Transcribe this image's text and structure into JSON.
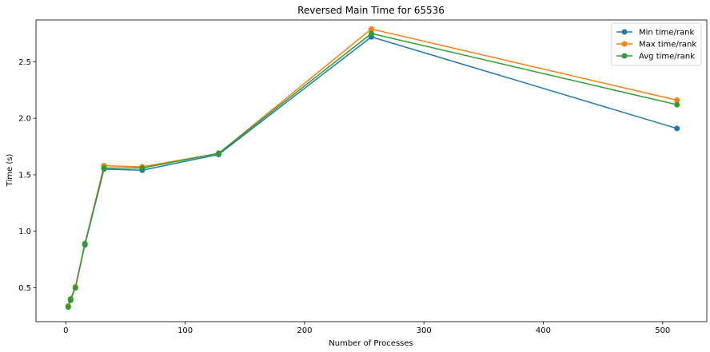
{
  "chart_data": {
    "type": "line",
    "title": "Reversed Main Time for 65536",
    "xlabel": "Number of Processes",
    "ylabel": "Time (s)",
    "xlim": [
      -25,
      537
    ],
    "ylim": [
      0.2,
      2.87
    ],
    "xticks": [
      0,
      100,
      200,
      300,
      400,
      500
    ],
    "yticks": [
      0.5,
      1.0,
      1.5,
      2.0,
      2.5
    ],
    "x": [
      2,
      4,
      8,
      16,
      32,
      64,
      128,
      256,
      512
    ],
    "grid": false,
    "legend_position": "top-right",
    "series": [
      {
        "name": "Min time/rank",
        "color": "#1f77b4",
        "values": [
          0.33,
          0.39,
          0.5,
          0.88,
          1.55,
          1.54,
          1.68,
          2.72,
          1.91
        ]
      },
      {
        "name": "Max time/rank",
        "color": "#ff7f0e",
        "values": [
          0.34,
          0.4,
          0.51,
          0.89,
          1.58,
          1.57,
          1.69,
          2.79,
          2.16
        ]
      },
      {
        "name": "Avg time/rank",
        "color": "#2ca02c",
        "values": [
          0.33,
          0.4,
          0.5,
          0.89,
          1.56,
          1.56,
          1.69,
          2.75,
          2.12
        ]
      }
    ]
  }
}
